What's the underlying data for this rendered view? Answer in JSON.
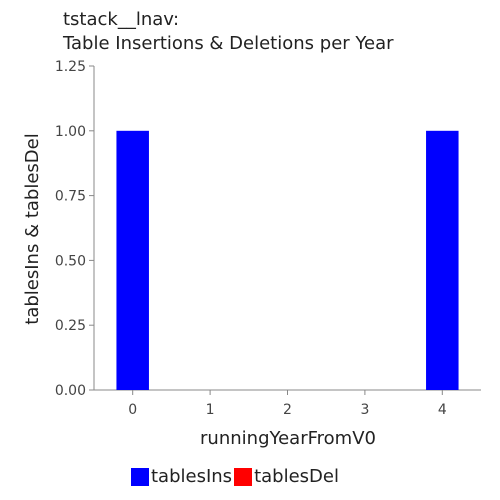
{
  "chart_data": {
    "type": "bar",
    "title": "tstack__lnav:",
    "subtitle": "Table Insertions & Deletions per Year",
    "xlabel": "runningYearFromV0",
    "ylabel": "tablesIns & tablesDel",
    "categories": [
      "0",
      "1",
      "2",
      "3",
      "4"
    ],
    "ylim": [
      0,
      1.25
    ],
    "yticks": [
      "0.00",
      "0.25",
      "0.50",
      "0.75",
      "1.00",
      "1.25"
    ],
    "ytick_values": [
      0,
      0.25,
      0.5,
      0.75,
      1.0,
      1.25
    ],
    "stacked": true,
    "series": [
      {
        "name": "tablesIns",
        "color": "#0000ff",
        "values": [
          1,
          0,
          0,
          0,
          1
        ]
      },
      {
        "name": "tablesDel",
        "color": "#ff0000",
        "values": [
          0,
          0,
          0,
          0,
          0
        ]
      }
    ],
    "legend_position": "bottom",
    "grid": false
  }
}
